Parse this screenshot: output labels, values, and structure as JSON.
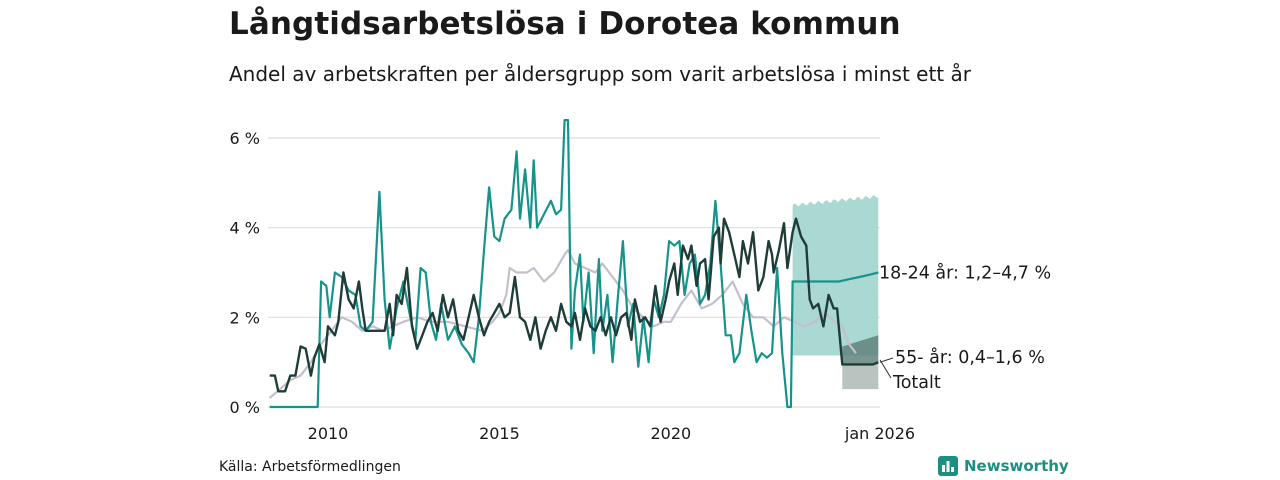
{
  "title": "Långtidsarbetslösa i Dorotea kommun",
  "subtitle": "Andel av arbetskraften per åldersgrupp som varit arbetslösa i minst ett år",
  "source": "Källa: Arbetsförmedlingen",
  "logo": {
    "name": "Newsworthy",
    "icon": "bar-chart-icon"
  },
  "colors": {
    "young": "#16938a",
    "old": "#1f3d38",
    "total": "#c4bfcc",
    "band_young": "#a5d6d0",
    "band_old": "#62837e",
    "band_old_low": "#b9c4c1",
    "grid": "#dedede"
  },
  "chart_data": {
    "type": "line",
    "title": "Långtidsarbetslösa i Dorotea kommun",
    "xlabel": "",
    "ylabel": "",
    "xlim": [
      2008.25,
      2026.1
    ],
    "ylim": [
      0,
      6.5
    ],
    "yticks": [
      0,
      2,
      4,
      6
    ],
    "ytick_labels": [
      "0 %",
      "2 %",
      "4 %",
      "6 %"
    ],
    "xticks": [
      2010,
      2015,
      2020,
      2026
    ],
    "xtick_labels": [
      "2010",
      "2015",
      "2020",
      "jan 2026"
    ],
    "series": [
      {
        "name": "Totalt",
        "label": "Totalt",
        "points": [
          [
            2008.3,
            0.2
          ],
          [
            2008.6,
            0.4
          ],
          [
            2008.9,
            0.6
          ],
          [
            2009.2,
            0.7
          ],
          [
            2009.5,
            1.0
          ],
          [
            2009.8,
            1.4
          ],
          [
            2010.1,
            1.7
          ],
          [
            2010.4,
            2.0
          ],
          [
            2010.7,
            1.9
          ],
          [
            2011.0,
            1.7
          ],
          [
            2011.3,
            1.8
          ],
          [
            2011.6,
            1.7
          ],
          [
            2011.9,
            1.8
          ],
          [
            2012.2,
            1.9
          ],
          [
            2012.6,
            2.0
          ],
          [
            2013.0,
            1.9
          ],
          [
            2013.5,
            1.9
          ],
          [
            2014.0,
            1.8
          ],
          [
            2014.5,
            1.7
          ],
          [
            2014.8,
            1.9
          ],
          [
            2015.0,
            2.1
          ],
          [
            2015.2,
            2.5
          ],
          [
            2015.3,
            3.1
          ],
          [
            2015.5,
            3.0
          ],
          [
            2015.8,
            3.0
          ],
          [
            2016.0,
            3.1
          ],
          [
            2016.3,
            2.8
          ],
          [
            2016.6,
            3.0
          ],
          [
            2016.9,
            3.4
          ],
          [
            2017.0,
            3.5
          ],
          [
            2017.2,
            3.2
          ],
          [
            2017.5,
            3.1
          ],
          [
            2017.8,
            3.0
          ],
          [
            2018.0,
            3.2
          ],
          [
            2018.3,
            2.9
          ],
          [
            2018.6,
            2.6
          ],
          [
            2018.9,
            2.2
          ],
          [
            2019.2,
            2.0
          ],
          [
            2019.5,
            1.8
          ],
          [
            2019.8,
            1.9
          ],
          [
            2020.0,
            1.9
          ],
          [
            2020.3,
            2.3
          ],
          [
            2020.6,
            2.6
          ],
          [
            2020.9,
            2.2
          ],
          [
            2021.2,
            2.3
          ],
          [
            2021.5,
            2.5
          ],
          [
            2021.8,
            2.8
          ],
          [
            2022.1,
            2.3
          ],
          [
            2022.4,
            2.0
          ],
          [
            2022.7,
            2.0
          ],
          [
            2023.0,
            1.8
          ],
          [
            2023.3,
            2.0
          ],
          [
            2023.6,
            1.9
          ],
          [
            2023.9,
            1.8
          ],
          [
            2024.2,
            1.9
          ],
          [
            2024.5,
            2.1
          ],
          [
            2024.8,
            1.9
          ],
          [
            2025.0,
            1.8
          ],
          [
            2025.2,
            1.4
          ],
          [
            2025.4,
            1.2
          ]
        ]
      },
      {
        "name": "18-24 år",
        "label": "18-24 år: 1,2–4,7 %",
        "points": [
          [
            2008.3,
            0.0
          ],
          [
            2009.6,
            0.0
          ],
          [
            2009.7,
            0.0
          ],
          [
            2009.8,
            2.8
          ],
          [
            2009.95,
            2.7
          ],
          [
            2010.05,
            2.0
          ],
          [
            2010.2,
            3.0
          ],
          [
            2010.4,
            2.9
          ],
          [
            2010.6,
            2.6
          ],
          [
            2010.8,
            2.5
          ],
          [
            2010.95,
            1.8
          ],
          [
            2011.1,
            1.7
          ],
          [
            2011.3,
            1.9
          ],
          [
            2011.5,
            4.8
          ],
          [
            2011.65,
            2.4
          ],
          [
            2011.8,
            1.3
          ],
          [
            2012.0,
            2.2
          ],
          [
            2012.2,
            2.8
          ],
          [
            2012.4,
            2.0
          ],
          [
            2012.55,
            1.5
          ],
          [
            2012.7,
            3.1
          ],
          [
            2012.85,
            3.0
          ],
          [
            2013.0,
            1.9
          ],
          [
            2013.15,
            1.5
          ],
          [
            2013.3,
            2.3
          ],
          [
            2013.5,
            1.5
          ],
          [
            2013.7,
            1.8
          ],
          [
            2013.9,
            1.4
          ],
          [
            2014.1,
            1.2
          ],
          [
            2014.25,
            1.0
          ],
          [
            2014.4,
            2.0
          ],
          [
            2014.55,
            3.5
          ],
          [
            2014.7,
            4.9
          ],
          [
            2014.85,
            3.8
          ],
          [
            2015.0,
            3.7
          ],
          [
            2015.15,
            4.2
          ],
          [
            2015.35,
            4.4
          ],
          [
            2015.5,
            5.7
          ],
          [
            2015.6,
            4.2
          ],
          [
            2015.75,
            5.3
          ],
          [
            2015.9,
            4.0
          ],
          [
            2016.0,
            5.5
          ],
          [
            2016.1,
            4.0
          ],
          [
            2016.3,
            4.3
          ],
          [
            2016.5,
            4.6
          ],
          [
            2016.65,
            4.3
          ],
          [
            2016.8,
            4.4
          ],
          [
            2016.9,
            6.4
          ],
          [
            2017.0,
            6.4
          ],
          [
            2017.1,
            1.3
          ],
          [
            2017.2,
            2.6
          ],
          [
            2017.35,
            3.4
          ],
          [
            2017.45,
            1.9
          ],
          [
            2017.6,
            3.0
          ],
          [
            2017.75,
            1.2
          ],
          [
            2017.9,
            3.3
          ],
          [
            2018.0,
            1.7
          ],
          [
            2018.15,
            2.5
          ],
          [
            2018.3,
            1.0
          ],
          [
            2018.45,
            2.4
          ],
          [
            2018.6,
            3.7
          ],
          [
            2018.75,
            1.8
          ],
          [
            2018.9,
            2.3
          ],
          [
            2019.05,
            0.9
          ],
          [
            2019.2,
            2.0
          ],
          [
            2019.35,
            1.0
          ],
          [
            2019.5,
            2.4
          ],
          [
            2019.65,
            2.0
          ],
          [
            2019.8,
            2.5
          ],
          [
            2019.95,
            3.7
          ],
          [
            2020.1,
            3.6
          ],
          [
            2020.25,
            3.7
          ],
          [
            2020.4,
            2.5
          ],
          [
            2020.55,
            3.2
          ],
          [
            2020.7,
            3.4
          ],
          [
            2020.85,
            2.3
          ],
          [
            2021.0,
            2.5
          ],
          [
            2021.15,
            3.2
          ],
          [
            2021.3,
            4.6
          ],
          [
            2021.45,
            3.2
          ],
          [
            2021.6,
            1.6
          ],
          [
            2021.75,
            1.6
          ],
          [
            2021.85,
            1.0
          ],
          [
            2022.0,
            1.2
          ],
          [
            2022.2,
            2.5
          ],
          [
            2022.35,
            1.7
          ],
          [
            2022.5,
            1.0
          ],
          [
            2022.65,
            1.2
          ],
          [
            2022.8,
            1.1
          ],
          [
            2022.95,
            1.2
          ],
          [
            2023.1,
            3.1
          ],
          [
            2023.25,
            1.2
          ],
          [
            2023.4,
            0.0
          ],
          [
            2023.5,
            0.0
          ],
          [
            2023.55,
            2.8
          ],
          [
            2024.0,
            2.8
          ],
          [
            2024.5,
            2.8
          ],
          [
            2024.9,
            2.8
          ],
          [
            2025.2,
            2.85
          ],
          [
            2025.5,
            2.9
          ],
          [
            2025.8,
            2.95
          ],
          [
            2026.05,
            3.0
          ]
        ]
      },
      {
        "name": "55- år",
        "label": "55- år: 0,4–1,6 %",
        "points": [
          [
            2008.3,
            0.7
          ],
          [
            2008.45,
            0.7
          ],
          [
            2008.55,
            0.35
          ],
          [
            2008.75,
            0.35
          ],
          [
            2008.9,
            0.7
          ],
          [
            2009.05,
            0.7
          ],
          [
            2009.2,
            1.35
          ],
          [
            2009.35,
            1.3
          ],
          [
            2009.5,
            0.7
          ],
          [
            2009.6,
            1.1
          ],
          [
            2009.75,
            1.4
          ],
          [
            2009.9,
            1.0
          ],
          [
            2010.0,
            1.8
          ],
          [
            2010.1,
            1.7
          ],
          [
            2010.2,
            1.6
          ],
          [
            2010.3,
            1.9
          ],
          [
            2010.45,
            3.0
          ],
          [
            2010.6,
            2.4
          ],
          [
            2010.75,
            2.2
          ],
          [
            2010.9,
            2.8
          ],
          [
            2011.0,
            2.2
          ],
          [
            2011.1,
            1.7
          ],
          [
            2011.3,
            1.7
          ],
          [
            2011.5,
            1.7
          ],
          [
            2011.65,
            1.7
          ],
          [
            2011.8,
            2.3
          ],
          [
            2011.9,
            1.6
          ],
          [
            2012.0,
            2.5
          ],
          [
            2012.15,
            2.3
          ],
          [
            2012.3,
            3.1
          ],
          [
            2012.45,
            1.8
          ],
          [
            2012.6,
            1.3
          ],
          [
            2012.75,
            1.6
          ],
          [
            2012.9,
            1.9
          ],
          [
            2013.05,
            2.1
          ],
          [
            2013.2,
            1.7
          ],
          [
            2013.35,
            2.5
          ],
          [
            2013.5,
            2.0
          ],
          [
            2013.65,
            2.4
          ],
          [
            2013.8,
            1.7
          ],
          [
            2013.95,
            1.5
          ],
          [
            2014.1,
            2.0
          ],
          [
            2014.25,
            2.5
          ],
          [
            2014.4,
            2.0
          ],
          [
            2014.55,
            1.6
          ],
          [
            2014.7,
            1.9
          ],
          [
            2014.85,
            2.1
          ],
          [
            2015.0,
            2.3
          ],
          [
            2015.15,
            2.0
          ],
          [
            2015.3,
            2.1
          ],
          [
            2015.45,
            2.9
          ],
          [
            2015.6,
            2.0
          ],
          [
            2015.75,
            1.9
          ],
          [
            2015.9,
            1.5
          ],
          [
            2016.05,
            2.0
          ],
          [
            2016.2,
            1.3
          ],
          [
            2016.35,
            1.7
          ],
          [
            2016.5,
            2.0
          ],
          [
            2016.65,
            1.7
          ],
          [
            2016.8,
            2.3
          ],
          [
            2016.95,
            1.9
          ],
          [
            2017.1,
            1.8
          ],
          [
            2017.2,
            2.1
          ],
          [
            2017.35,
            1.5
          ],
          [
            2017.5,
            2.2
          ],
          [
            2017.65,
            1.8
          ],
          [
            2017.8,
            1.7
          ],
          [
            2017.95,
            2.0
          ],
          [
            2018.1,
            1.6
          ],
          [
            2018.25,
            2.0
          ],
          [
            2018.4,
            1.6
          ],
          [
            2018.55,
            2.0
          ],
          [
            2018.7,
            2.1
          ],
          [
            2018.85,
            1.5
          ],
          [
            2018.95,
            2.4
          ],
          [
            2019.1,
            1.9
          ],
          [
            2019.25,
            2.0
          ],
          [
            2019.4,
            1.8
          ],
          [
            2019.55,
            2.7
          ],
          [
            2019.7,
            1.9
          ],
          [
            2019.85,
            2.4
          ],
          [
            2019.95,
            2.8
          ],
          [
            2020.1,
            3.2
          ],
          [
            2020.2,
            2.5
          ],
          [
            2020.35,
            3.6
          ],
          [
            2020.5,
            3.3
          ],
          [
            2020.6,
            3.6
          ],
          [
            2020.75,
            2.7
          ],
          [
            2020.85,
            3.2
          ],
          [
            2021.0,
            3.3
          ],
          [
            2021.1,
            2.4
          ],
          [
            2021.25,
            3.8
          ],
          [
            2021.4,
            4.0
          ],
          [
            2021.45,
            3.2
          ],
          [
            2021.55,
            4.2
          ],
          [
            2021.7,
            3.9
          ],
          [
            2021.85,
            3.4
          ],
          [
            2022.0,
            2.9
          ],
          [
            2022.1,
            3.7
          ],
          [
            2022.25,
            3.2
          ],
          [
            2022.4,
            3.9
          ],
          [
            2022.55,
            2.6
          ],
          [
            2022.7,
            2.9
          ],
          [
            2022.85,
            3.7
          ],
          [
            2022.95,
            3.4
          ],
          [
            2023.0,
            3.0
          ],
          [
            2023.15,
            3.5
          ],
          [
            2023.3,
            4.1
          ],
          [
            2023.4,
            3.1
          ],
          [
            2023.55,
            3.9
          ],
          [
            2023.65,
            4.2
          ],
          [
            2023.8,
            3.8
          ],
          [
            2023.95,
            3.6
          ],
          [
            2024.05,
            2.4
          ],
          [
            2024.15,
            2.2
          ],
          [
            2024.3,
            2.3
          ],
          [
            2024.45,
            1.8
          ],
          [
            2024.6,
            2.5
          ],
          [
            2024.75,
            2.2
          ],
          [
            2024.85,
            2.2
          ],
          [
            2025.0,
            0.95
          ],
          [
            2025.3,
            0.95
          ],
          [
            2025.6,
            0.95
          ],
          [
            2025.9,
            0.95
          ],
          [
            2026.05,
            1.0
          ]
        ]
      }
    ],
    "bands": [
      {
        "name": "18-24 år",
        "x": [
          2023.55,
          2026.05
        ],
        "lower": 1.15,
        "upper_start": 4.5,
        "upper_end": 4.7
      },
      {
        "name": "55- år",
        "x": [
          2025.0,
          2026.05
        ],
        "lower": 0.4,
        "upper": 1.6,
        "split": 0.95
      }
    ]
  }
}
